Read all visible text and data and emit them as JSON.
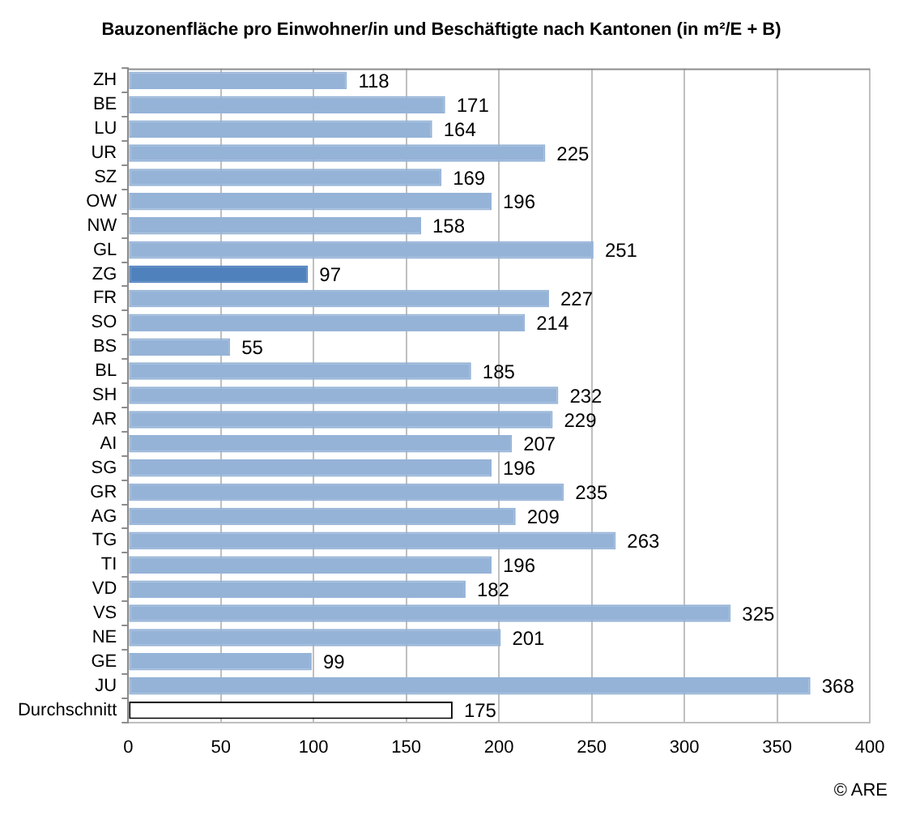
{
  "chart_data": {
    "type": "bar",
    "orientation": "horizontal",
    "title": "Bauzonenfläche pro Einwohner/in und Beschäftigte nach Kantonen (in m²/E + B)",
    "categories": [
      "ZH",
      "BE",
      "LU",
      "UR",
      "SZ",
      "OW",
      "NW",
      "GL",
      "ZG",
      "FR",
      "SO",
      "BS",
      "BL",
      "SH",
      "AR",
      "AI",
      "SG",
      "GR",
      "AG",
      "TG",
      "TI",
      "VD",
      "VS",
      "NE",
      "GE",
      "JU",
      "Durchschnitt"
    ],
    "values": [
      118,
      171,
      164,
      225,
      169,
      196,
      158,
      251,
      97,
      227,
      214,
      55,
      185,
      232,
      229,
      207,
      196,
      235,
      209,
      263,
      196,
      182,
      325,
      201,
      99,
      368,
      175
    ],
    "colors": [
      "#95b3d7",
      "#95b3d7",
      "#95b3d7",
      "#95b3d7",
      "#95b3d7",
      "#95b3d7",
      "#95b3d7",
      "#95b3d7",
      "#4f81bd",
      "#95b3d7",
      "#95b3d7",
      "#95b3d7",
      "#95b3d7",
      "#95b3d7",
      "#95b3d7",
      "#95b3d7",
      "#95b3d7",
      "#95b3d7",
      "#95b3d7",
      "#95b3d7",
      "#95b3d7",
      "#95b3d7",
      "#95b3d7",
      "#95b3d7",
      "#95b3d7",
      "#95b3d7",
      "#ffffff"
    ],
    "xlim": [
      0,
      400
    ],
    "xticks": [
      0,
      50,
      100,
      150,
      200,
      250,
      300,
      350,
      400
    ],
    "grid": "x",
    "legend": false,
    "data_labels": true,
    "annotations": [
      "© ARE"
    ]
  }
}
